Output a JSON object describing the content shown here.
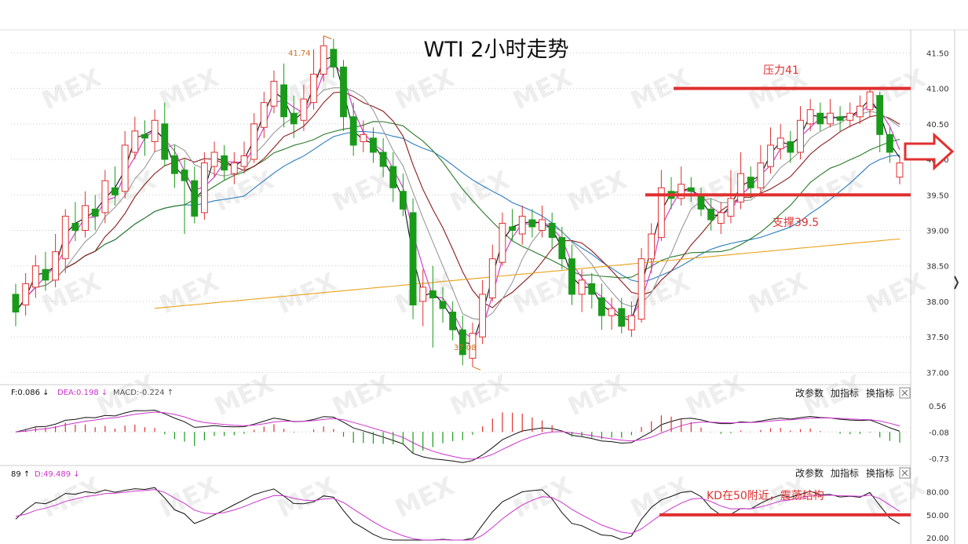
{
  "chart_data": {
    "type": "candlestick",
    "title": "WTI 2小时走势",
    "main": {
      "ylim": [
        36.85,
        41.78
      ],
      "yticks": [
        "41.50",
        "41.00",
        "40.50",
        "40.00",
        "39.50",
        "39.00",
        "38.50",
        "38.00",
        "37.50",
        "37.00"
      ],
      "ytick_values": [
        41.5,
        41.0,
        40.5,
        40.0,
        39.5,
        39.0,
        38.5,
        38.0,
        37.5,
        37.0
      ],
      "high_label": "41.74",
      "low_label": "37.08",
      "candles": [
        [
          38.1,
          37.85,
          38.25,
          37.65
        ],
        [
          37.95,
          38.25,
          38.4,
          37.8
        ],
        [
          38.2,
          38.5,
          38.65,
          38.05
        ],
        [
          38.45,
          38.3,
          38.7,
          38.15
        ],
        [
          38.3,
          38.7,
          38.95,
          38.2
        ],
        [
          38.6,
          39.2,
          39.3,
          38.4
        ],
        [
          39.1,
          39.0,
          39.4,
          38.85
        ],
        [
          39.0,
          39.35,
          39.55,
          38.9
        ],
        [
          39.3,
          39.2,
          39.5,
          39.0
        ],
        [
          39.25,
          39.7,
          39.85,
          39.1
        ],
        [
          39.6,
          39.5,
          39.9,
          39.35
        ],
        [
          39.55,
          40.2,
          40.4,
          39.45
        ],
        [
          40.1,
          40.4,
          40.6,
          40.0
        ],
        [
          40.35,
          40.3,
          40.55,
          40.05
        ],
        [
          40.25,
          40.55,
          40.7,
          40.1
        ],
        [
          40.5,
          40.0,
          40.8,
          39.9
        ],
        [
          40.05,
          39.8,
          40.2,
          39.6
        ],
        [
          39.85,
          39.7,
          40.0,
          38.95
        ],
        [
          39.7,
          39.2,
          39.9,
          39.1
        ],
        [
          39.25,
          39.95,
          40.1,
          39.15
        ],
        [
          39.9,
          40.1,
          40.25,
          39.75
        ],
        [
          40.05,
          39.85,
          40.2,
          39.7
        ],
        [
          39.8,
          39.95,
          40.1,
          39.65
        ],
        [
          39.9,
          40.05,
          40.25,
          39.8
        ],
        [
          40.0,
          40.5,
          40.65,
          39.95
        ],
        [
          40.45,
          40.8,
          40.95,
          40.3
        ],
        [
          40.75,
          41.1,
          41.25,
          40.65
        ],
        [
          41.05,
          40.6,
          41.35,
          40.45
        ],
        [
          40.65,
          40.5,
          40.9,
          40.3
        ],
        [
          40.55,
          40.85,
          41.05,
          40.4
        ],
        [
          40.8,
          41.2,
          41.55,
          40.7
        ],
        [
          41.2,
          41.6,
          41.74,
          41.1
        ],
        [
          41.55,
          41.3,
          41.7,
          41.15
        ],
        [
          41.3,
          40.6,
          41.4,
          40.4
        ],
        [
          40.6,
          40.2,
          40.8,
          40.05
        ],
        [
          40.25,
          40.35,
          40.55,
          40.1
        ],
        [
          40.3,
          40.1,
          40.45,
          39.95
        ],
        [
          40.1,
          39.9,
          40.3,
          39.75
        ],
        [
          39.9,
          39.6,
          40.1,
          39.4
        ],
        [
          39.55,
          39.3,
          39.8,
          39.2
        ],
        [
          39.25,
          37.95,
          39.45,
          37.75
        ],
        [
          38.0,
          38.2,
          38.45,
          37.65
        ],
        [
          38.15,
          38.05,
          38.5,
          37.35
        ],
        [
          38.0,
          37.9,
          38.2,
          37.7
        ],
        [
          37.85,
          37.6,
          38.0,
          37.45
        ],
        [
          37.6,
          37.25,
          37.8,
          37.1
        ],
        [
          37.2,
          37.55,
          37.7,
          37.08
        ],
        [
          37.5,
          38.1,
          38.3,
          37.4
        ],
        [
          38.05,
          38.6,
          38.8,
          38.0
        ],
        [
          38.55,
          39.1,
          39.25,
          38.5
        ],
        [
          39.05,
          39.0,
          39.3,
          38.85
        ],
        [
          38.95,
          39.2,
          39.35,
          38.8
        ],
        [
          39.15,
          39.05,
          39.3,
          38.9
        ],
        [
          39.0,
          39.15,
          39.35,
          38.9
        ],
        [
          39.1,
          38.9,
          39.25,
          38.75
        ],
        [
          38.9,
          38.6,
          39.05,
          38.45
        ],
        [
          38.6,
          38.1,
          38.8,
          37.95
        ],
        [
          38.1,
          38.3,
          38.45,
          37.85
        ],
        [
          38.25,
          38.1,
          38.4,
          37.9
        ],
        [
          38.05,
          37.8,
          38.25,
          37.6
        ],
        [
          37.8,
          37.9,
          38.05,
          37.6
        ],
        [
          37.9,
          37.65,
          38.05,
          37.55
        ],
        [
          37.6,
          37.8,
          38.0,
          37.5
        ],
        [
          37.75,
          38.6,
          38.75,
          37.7
        ],
        [
          38.6,
          38.95,
          39.1,
          38.4
        ],
        [
          38.9,
          39.6,
          39.85,
          38.85
        ],
        [
          39.55,
          39.45,
          39.75,
          39.3
        ],
        [
          39.45,
          39.65,
          39.9,
          39.35
        ],
        [
          39.6,
          39.55,
          39.75,
          39.4
        ],
        [
          39.5,
          39.3,
          39.6,
          39.2
        ],
        [
          39.3,
          39.15,
          39.45,
          39.0
        ],
        [
          39.1,
          39.25,
          39.4,
          38.95
        ],
        [
          39.2,
          39.45,
          39.85,
          39.1
        ],
        [
          39.4,
          39.8,
          40.1,
          39.3
        ],
        [
          39.75,
          39.6,
          39.9,
          39.45
        ],
        [
          39.6,
          39.95,
          40.2,
          39.5
        ],
        [
          39.9,
          40.2,
          40.45,
          39.8
        ],
        [
          40.15,
          40.3,
          40.5,
          40.0
        ],
        [
          40.25,
          40.1,
          40.4,
          39.95
        ],
        [
          40.1,
          40.55,
          40.75,
          40.0
        ],
        [
          40.5,
          40.7,
          40.85,
          40.4
        ],
        [
          40.65,
          40.5,
          40.8,
          40.4
        ],
        [
          40.5,
          40.65,
          40.85,
          40.45
        ],
        [
          40.6,
          40.55,
          40.75,
          40.4
        ],
        [
          40.55,
          40.65,
          40.8,
          40.45
        ],
        [
          40.6,
          40.75,
          40.9,
          40.5
        ],
        [
          40.7,
          40.95,
          41.0,
          40.6
        ],
        [
          40.9,
          40.35,
          40.95,
          40.1
        ],
        [
          40.35,
          40.1,
          40.45,
          39.95
        ],
        [
          39.75,
          39.95,
          40.05,
          39.65
        ]
      ],
      "annotations": [
        {
          "text": "压力41",
          "value": 41.0,
          "color": "#e03030"
        },
        {
          "text": "支撑39.5",
          "value": 39.5,
          "color": "#e03030"
        }
      ]
    },
    "macd": {
      "legend": [
        "F:0.086 ↓",
        "DEA:0.198 ↓",
        "MACD:-0.224 ↑"
      ],
      "yticks": [
        "0.56",
        "-0.08",
        "-0.73"
      ],
      "ytick_values": [
        0.56,
        -0.08,
        -0.73
      ],
      "ylim": [
        -0.85,
        0.7
      ],
      "controls": [
        "改参数",
        "加指标",
        "换指标"
      ]
    },
    "kd": {
      "legend": [
        "89 ↑",
        "D:49.489 ↓"
      ],
      "yticks": [
        "80.00",
        "50.00",
        "20.00"
      ],
      "ytick_values": [
        80,
        50,
        20
      ],
      "ylim": [
        15,
        95
      ],
      "annotation": {
        "text": "KD在50附近，震荡结构",
        "value": 50,
        "color": "#e03030"
      },
      "controls": [
        "改参数",
        "加指标",
        "换指标"
      ]
    },
    "colors": {
      "up": "#e03030",
      "down": "#1a9a1a",
      "ma5": "#111111",
      "ma10": "#cc33cc",
      "ma20": "#999999",
      "ma30": "#8b1a1a",
      "ma60": "#2a7a2a",
      "ma120": "#2a7ac0",
      "ma250": "#e8a21a",
      "grid": "#c8c8c8",
      "red_line": "#e03030"
    },
    "watermark": "MEX"
  }
}
